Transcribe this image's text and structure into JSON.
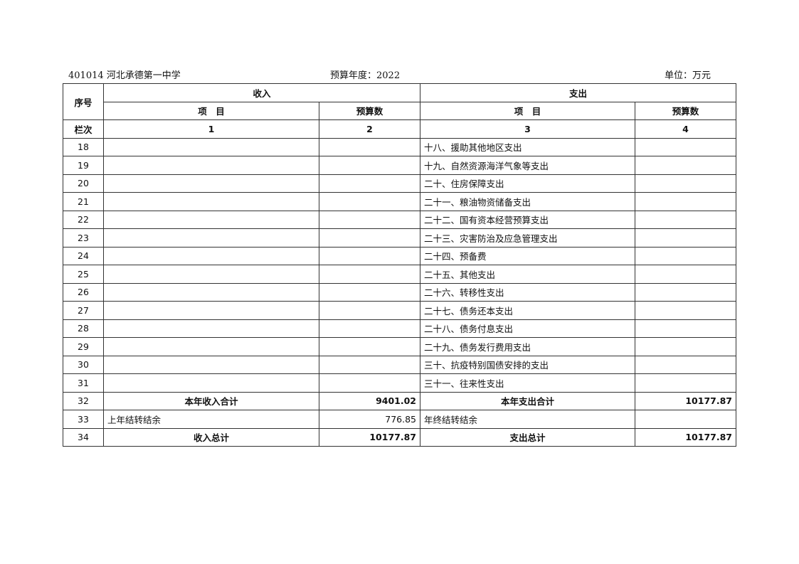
{
  "header": {
    "unit_org": "401014 河北承德第一中学",
    "year": "预算年度：2022",
    "unit": "单位：万元"
  },
  "columns": {
    "seq": "序号",
    "income": "收入",
    "expense": "支出",
    "item": "项　目",
    "budget": "预算数",
    "col_label": "栏次",
    "c1": "1",
    "c2": "2",
    "c3": "3",
    "c4": "4"
  },
  "rows": [
    {
      "n": "18",
      "in_item": "",
      "in_val": "",
      "ex_item": "十八、援助其他地区支出",
      "ex_val": ""
    },
    {
      "n": "19",
      "in_item": "",
      "in_val": "",
      "ex_item": "十九、自然资源海洋气象等支出",
      "ex_val": ""
    },
    {
      "n": "20",
      "in_item": "",
      "in_val": "",
      "ex_item": "二十、住房保障支出",
      "ex_val": ""
    },
    {
      "n": "21",
      "in_item": "",
      "in_val": "",
      "ex_item": "二十一、粮油物资储备支出",
      "ex_val": ""
    },
    {
      "n": "22",
      "in_item": "",
      "in_val": "",
      "ex_item": "二十二、国有资本经营预算支出",
      "ex_val": ""
    },
    {
      "n": "23",
      "in_item": "",
      "in_val": "",
      "ex_item": "二十三、灾害防治及应急管理支出",
      "ex_val": ""
    },
    {
      "n": "24",
      "in_item": "",
      "in_val": "",
      "ex_item": "二十四、预备费",
      "ex_val": ""
    },
    {
      "n": "25",
      "in_item": "",
      "in_val": "",
      "ex_item": "二十五、其他支出",
      "ex_val": ""
    },
    {
      "n": "26",
      "in_item": "",
      "in_val": "",
      "ex_item": "二十六、转移性支出",
      "ex_val": ""
    },
    {
      "n": "27",
      "in_item": "",
      "in_val": "",
      "ex_item": "二十七、债务还本支出",
      "ex_val": ""
    },
    {
      "n": "28",
      "in_item": "",
      "in_val": "",
      "ex_item": "二十八、债务付息支出",
      "ex_val": ""
    },
    {
      "n": "29",
      "in_item": "",
      "in_val": "",
      "ex_item": "二十九、债务发行费用支出",
      "ex_val": ""
    },
    {
      "n": "30",
      "in_item": "",
      "in_val": "",
      "ex_item": "三十、抗疫特别国债安排的支出",
      "ex_val": ""
    },
    {
      "n": "31",
      "in_item": "",
      "in_val": "",
      "ex_item": "三十一、往来性支出",
      "ex_val": ""
    },
    {
      "n": "32",
      "in_item": "本年收入合计",
      "in_val": "9401.02",
      "ex_item": "本年支出合计",
      "ex_val": "10177.87",
      "bold": true
    },
    {
      "n": "33",
      "in_item": "上年结转结余",
      "in_val": "776.85",
      "ex_item": "年终结转结余",
      "ex_val": ""
    },
    {
      "n": "34",
      "in_item": "收入总计",
      "in_val": "10177.87",
      "ex_item": "支出总计",
      "ex_val": "10177.87",
      "bold": true
    }
  ]
}
